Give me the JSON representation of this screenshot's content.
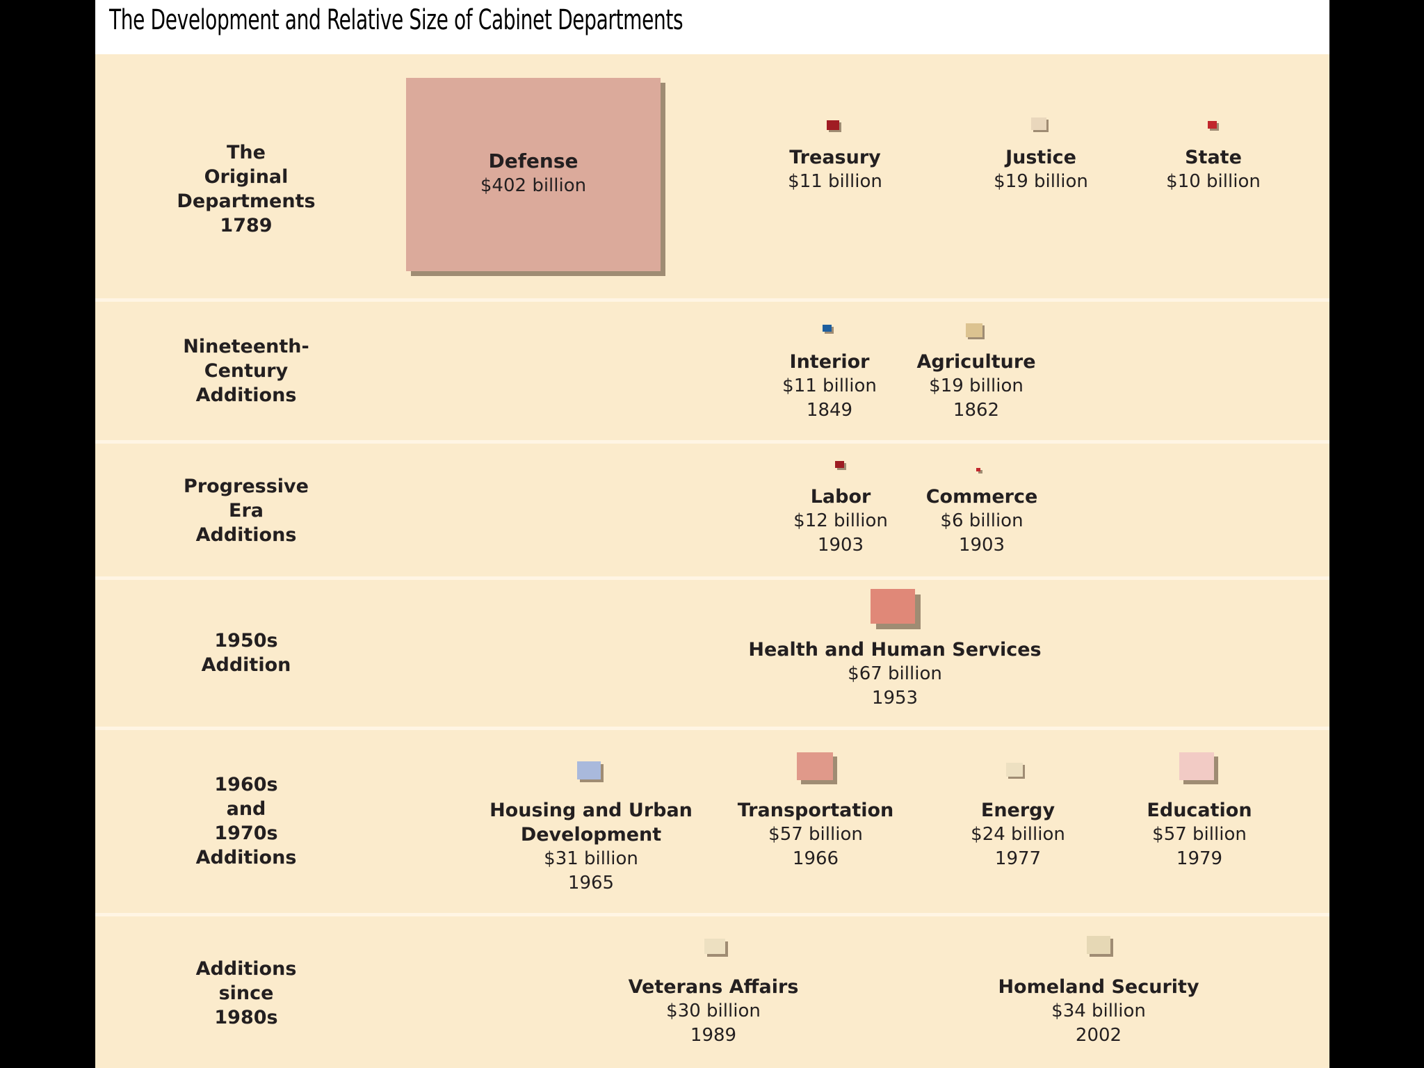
{
  "title": "The Development and Relative Size of Cabinet Departments",
  "rows": [
    {
      "era": [
        "The",
        "Original",
        "Departments",
        "1789"
      ]
    },
    {
      "era": [
        "Nineteenth-",
        "Century",
        "Additions"
      ]
    },
    {
      "era": [
        "Progressive",
        "Era",
        "Additions"
      ]
    },
    {
      "era": [
        "1950s",
        "Addition"
      ]
    },
    {
      "era": [
        "1960s",
        "and",
        "1970s",
        "Additions"
      ]
    },
    {
      "era": [
        "Additions",
        "since",
        "1980s"
      ]
    }
  ],
  "defense": {
    "name": "Defense",
    "budget": "$402 billion",
    "color": "#dbaa9b"
  },
  "departments": [
    {
      "name": "Treasury",
      "budget": "$11 billion",
      "year": "",
      "color": "#a01c23"
    },
    {
      "name": "Justice",
      "budget": "$19 billion",
      "year": "",
      "color": "#e9d7bc"
    },
    {
      "name": "State",
      "budget": "$10 billion",
      "year": "",
      "color": "#c1272d"
    },
    {
      "name": "Interior",
      "budget": "$11 billion",
      "year": "1849",
      "color": "#1d5e9e"
    },
    {
      "name": "Agriculture",
      "budget": "$19 billion",
      "year": "1862",
      "color": "#dcc390"
    },
    {
      "name": "Labor",
      "budget": "$12 billion",
      "year": "1903",
      "color": "#9d1c22"
    },
    {
      "name": "Commerce",
      "budget": "$6 billion",
      "year": "1903",
      "color": "#c1272d"
    },
    {
      "name": "Health and Human Services",
      "budget": "$67 billion",
      "year": "1953",
      "color": "#e08878"
    },
    {
      "name": "Housing and Urban Development",
      "name_lines": [
        "Housing and Urban",
        "Development"
      ],
      "budget": "$31 billion",
      "year": "1965",
      "color": "#a9b9dc"
    },
    {
      "name": "Transportation",
      "budget": "$57 billion",
      "year": "1966",
      "color": "#e0998a"
    },
    {
      "name": "Energy",
      "budget": "$24 billion",
      "year": "1977",
      "color": "#ede0c1"
    },
    {
      "name": "Education",
      "budget": "$57 billion",
      "year": "1979",
      "color": "#f2cbc5"
    },
    {
      "name": "Veterans Affairs",
      "budget": "$30 billion",
      "year": "1989",
      "color": "#ede0c1"
    },
    {
      "name": "Homeland Security",
      "budget": "$34 billion",
      "year": "2002",
      "color": "#e6d8b5"
    }
  ]
}
